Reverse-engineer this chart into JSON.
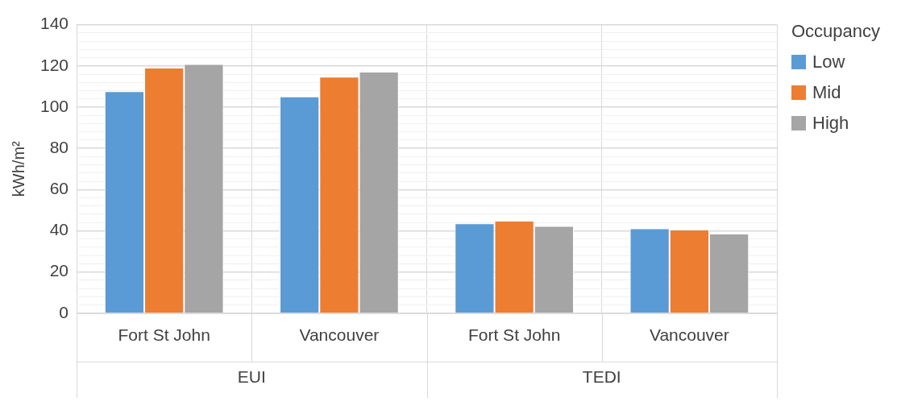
{
  "chart_data": {
    "type": "bar",
    "ylabel": "kWh/m²",
    "categories": [
      "Fort St John",
      "Vancouver",
      "Fort St John",
      "Vancouver"
    ],
    "annotations": [
      "EUI",
      "TEDI"
    ],
    "legend_title": "Occupancy",
    "series": [
      {
        "name": "Low",
        "color": "#5b9bd5",
        "values": [
          107.7,
          105.2,
          43.6,
          41.2
        ]
      },
      {
        "name": "Mid",
        "color": "#ed7d31",
        "values": [
          119.1,
          114.7,
          44.9,
          40.6
        ]
      },
      {
        "name": "High",
        "color": "#a5a5a5",
        "values": [
          120.9,
          117.2,
          42.3,
          38.6
        ]
      }
    ],
    "ylim": [
      0,
      140
    ],
    "yticks": [
      0,
      {
        "value": 4,
        "label": null
      },
      {
        "value": 8,
        "label": null
      },
      {
        "value": 12,
        "label": null
      },
      {
        "value": 16,
        "label": null
      },
      20,
      {
        "value": 24,
        "label": null
      },
      {
        "value": 28,
        "label": null
      },
      {
        "value": 32,
        "label": null
      },
      {
        "value": 36,
        "label": null
      },
      40,
      {
        "value": 44,
        "label": null
      },
      {
        "value": 48,
        "label": null
      },
      {
        "value": 52,
        "label": null
      },
      {
        "value": 56,
        "label": null
      },
      60,
      {
        "value": 64,
        "label": null
      },
      {
        "value": 68,
        "label": null
      },
      {
        "value": 72,
        "label": null
      },
      {
        "value": 76,
        "label": null
      },
      80,
      {
        "value": 84,
        "label": null
      },
      {
        "value": 88,
        "label": null
      },
      {
        "value": 92,
        "label": null
      },
      {
        "value": 96,
        "label": null
      },
      100,
      {
        "value": 104,
        "label": null
      },
      {
        "value": 108,
        "label": null
      },
      {
        "value": 112,
        "label": null
      },
      {
        "value": 116,
        "label": null
      },
      120,
      {
        "value": 124,
        "label": null
      },
      {
        "value": 128,
        "label": null
      },
      {
        "value": 132,
        "label": null
      },
      {
        "value": 136,
        "label": null
      },
      140
    ],
    "grid": true,
    "legend": "right"
  }
}
